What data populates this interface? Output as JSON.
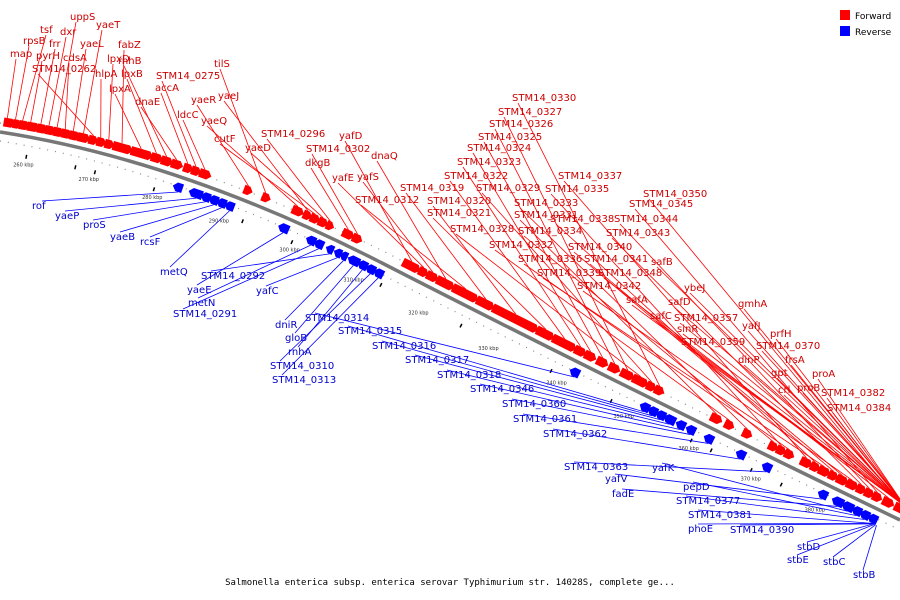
{
  "caption": "Salmonella enterica subsp. enterica serovar Typhimurium str. 14028S, complete ge...",
  "legend": [
    {
      "label": "Forward",
      "color": "#ff0000"
    },
    {
      "label": "Reverse",
      "color": "#0000ff"
    }
  ],
  "colors": {
    "forward": "#ff0000",
    "reverse": "#0000ff",
    "track": "#808080"
  },
  "ticks": [
    "260 kbp",
    "270 kbp",
    "280 kbp",
    "290 kbp",
    "300 kbp",
    "310 kbp",
    "320 kbp",
    "330 kbp",
    "340 kbp",
    "350 kbp",
    "360 kbp",
    "370 kbp",
    "380 kbp"
  ],
  "forward_labels": [
    "map",
    "rpsB",
    "tsf",
    "pyrH",
    "frr",
    "dxr",
    "uppS",
    "cdsA",
    "yaeL",
    "yaeT",
    "STM14_0262",
    "hlpA",
    "lpxD",
    "fabZ",
    "lpxA",
    "lpxB",
    "rnhB",
    "dnaE",
    "accA",
    "STM14_0275",
    "ldcC",
    "yaeR",
    "tilS",
    "yaeQ",
    "yaeJ",
    "cutF",
    "yaeD",
    "STM14_0296",
    "dkgB",
    "STM14_0302",
    "yafD",
    "yafE",
    "yafS",
    "dnaQ",
    "STM14_0312",
    "STM14_0319",
    "STM14_0320",
    "STM14_0321",
    "STM14_0322",
    "STM14_0323",
    "STM14_0324",
    "STM14_0325",
    "STM14_0326",
    "STM14_0327",
    "STM14_0328",
    "STM14_0329",
    "STM14_0330",
    "STM14_0331",
    "STM14_0332",
    "STM14_0333",
    "STM14_0334",
    "STM14_0335",
    "STM14_0336",
    "STM14_0337",
    "STM14_0338",
    "STM14_0339",
    "STM14_0340",
    "STM14_0341",
    "STM14_0342",
    "STM14_0343",
    "STM14_0344",
    "STM14_0345",
    "STM14_0348",
    "STM14_0350",
    "safB",
    "safA",
    "safC",
    "safD",
    "sinR",
    "ybeJ",
    "STM14_0357",
    "STM14_0359",
    "yafJ",
    "dinP",
    "gmhA",
    "prfH",
    "STM14_0370",
    "gpt",
    "crl",
    "frsA",
    "proB",
    "proA",
    "STM14_0382",
    "STM14_0384"
  ],
  "reverse_labels": [
    "rof",
    "yaeP",
    "proS",
    "yaeB",
    "rcsF",
    "metQ",
    "yaeE",
    "metN",
    "STM14_0291",
    "STM14_0292",
    "yafC",
    "dniR",
    "gloB",
    "rnhA",
    "STM14_0310",
    "STM14_0313",
    "STM14_0314",
    "STM14_0315",
    "STM14_0316",
    "STM14_0317",
    "STM14_0318",
    "STM14_0346",
    "STM14_0360",
    "STM14_0361",
    "STM14_0362",
    "STM14_0363",
    "yafV",
    "fadE",
    "yafK",
    "pepD",
    "STM14_0377",
    "STM14_0381",
    "phoE",
    "STM14_0390",
    "stbD",
    "stbE",
    "stbC",
    "stbB"
  ]
}
